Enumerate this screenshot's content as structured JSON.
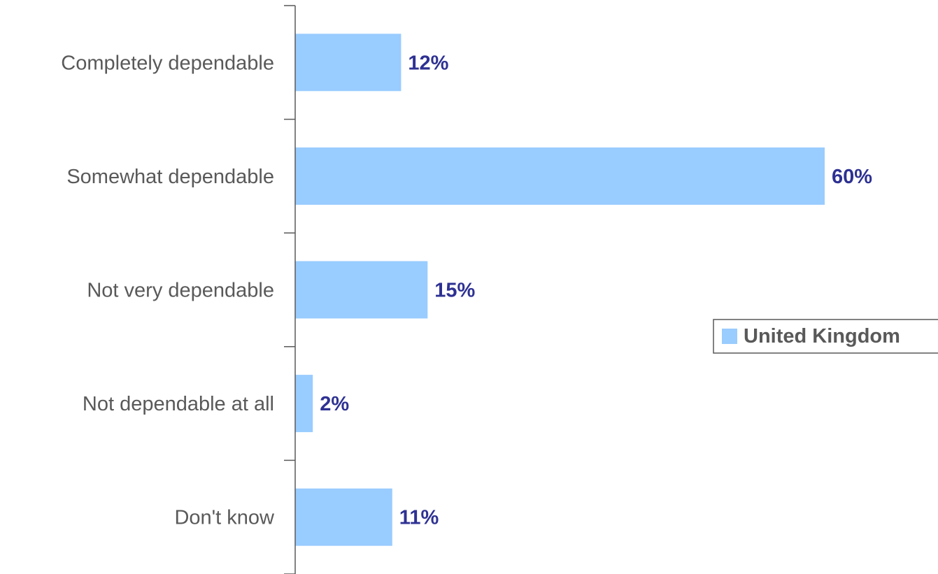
{
  "chart_data": {
    "type": "bar",
    "orientation": "horizontal",
    "categories": [
      "Completely dependable",
      "Somewhat dependable",
      "Not very dependable",
      "Not dependable at all",
      "Don't know"
    ],
    "series": [
      {
        "name": "United Kingdom",
        "values": [
          12,
          60,
          15,
          2,
          11
        ],
        "labels": [
          "12%",
          "60%",
          "15%",
          "2%",
          "11%"
        ]
      }
    ],
    "xlim": [
      0,
      72
    ],
    "grid": false,
    "legend_placement": "right",
    "colors": {
      "bar": "#99ccff",
      "data_label": "#2e3192",
      "category_label": "#595959",
      "axis": "#595959",
      "legend_border": "#595959"
    }
  }
}
